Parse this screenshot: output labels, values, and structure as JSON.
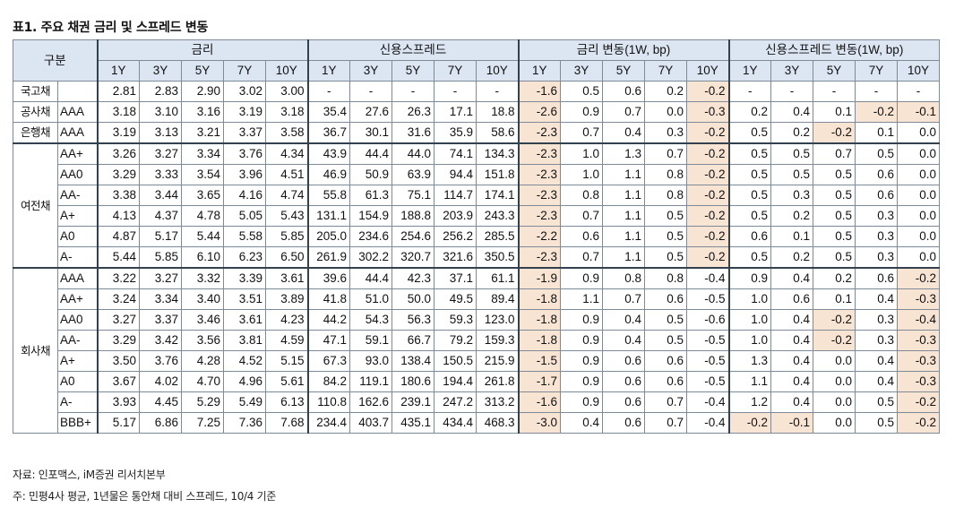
{
  "title": "표1. 주요 채권 금리 및 스프레드 변동",
  "header": {
    "category": "구분",
    "groups": [
      "금리",
      "신용스프레드",
      "금리 변동(1W, bp)",
      "신용스프레드 변동(1W, bp)"
    ],
    "tenors": [
      "1Y",
      "3Y",
      "5Y",
      "7Y",
      "10Y"
    ]
  },
  "sections": {
    "govt": "국고채",
    "public": "공사채",
    "bank": "은행채",
    "card": "여전채",
    "corp": "회사채"
  },
  "rows": [
    {
      "grade": "",
      "rates": [
        "2.81",
        "2.83",
        "2.90",
        "3.02",
        "3.00"
      ],
      "spreads": [
        "-",
        "-",
        "-",
        "-",
        "-"
      ],
      "rate_chg": [
        "-1.6",
        "0.5",
        "0.6",
        "0.2",
        "-0.2"
      ],
      "spread_chg": [
        "-",
        "-",
        "-",
        "-",
        "-"
      ]
    },
    {
      "grade": "AAA",
      "rates": [
        "3.18",
        "3.10",
        "3.16",
        "3.19",
        "3.18"
      ],
      "spreads": [
        "35.4",
        "27.6",
        "26.3",
        "17.1",
        "18.8"
      ],
      "rate_chg": [
        "-2.6",
        "0.9",
        "0.7",
        "0.0",
        "-0.3"
      ],
      "spread_chg": [
        "0.2",
        "0.4",
        "0.1",
        "-0.2",
        "-0.1"
      ]
    },
    {
      "grade": "AAA",
      "rates": [
        "3.19",
        "3.13",
        "3.21",
        "3.37",
        "3.58"
      ],
      "spreads": [
        "36.7",
        "30.1",
        "31.6",
        "35.9",
        "58.6"
      ],
      "rate_chg": [
        "-2.3",
        "0.7",
        "0.4",
        "0.3",
        "-0.2"
      ],
      "spread_chg": [
        "0.5",
        "0.2",
        "-0.2",
        "0.1",
        "0.0"
      ]
    },
    {
      "grade": "AA+",
      "rates": [
        "3.26",
        "3.27",
        "3.34",
        "3.76",
        "4.34"
      ],
      "spreads": [
        "43.9",
        "44.4",
        "44.0",
        "74.1",
        "134.3"
      ],
      "rate_chg": [
        "-2.3",
        "1.0",
        "1.3",
        "0.7",
        "-0.2"
      ],
      "spread_chg": [
        "0.5",
        "0.5",
        "0.7",
        "0.5",
        "0.0"
      ]
    },
    {
      "grade": "AA0",
      "rates": [
        "3.29",
        "3.33",
        "3.54",
        "3.96",
        "4.51"
      ],
      "spreads": [
        "46.9",
        "50.9",
        "63.9",
        "94.4",
        "151.8"
      ],
      "rate_chg": [
        "-2.3",
        "1.0",
        "1.1",
        "0.8",
        "-0.2"
      ],
      "spread_chg": [
        "0.5",
        "0.5",
        "0.5",
        "0.6",
        "0.0"
      ]
    },
    {
      "grade": "AA-",
      "rates": [
        "3.38",
        "3.44",
        "3.65",
        "4.16",
        "4.74"
      ],
      "spreads": [
        "55.8",
        "61.3",
        "75.1",
        "114.7",
        "174.1"
      ],
      "rate_chg": [
        "-2.3",
        "0.8",
        "1.1",
        "0.8",
        "-0.2"
      ],
      "spread_chg": [
        "0.5",
        "0.3",
        "0.5",
        "0.6",
        "0.0"
      ]
    },
    {
      "grade": "A+",
      "rates": [
        "4.13",
        "4.37",
        "4.78",
        "5.05",
        "5.43"
      ],
      "spreads": [
        "131.1",
        "154.9",
        "188.8",
        "203.9",
        "243.3"
      ],
      "rate_chg": [
        "-2.3",
        "0.7",
        "1.1",
        "0.5",
        "-0.2"
      ],
      "spread_chg": [
        "0.5",
        "0.2",
        "0.5",
        "0.3",
        "0.0"
      ]
    },
    {
      "grade": "A0",
      "rates": [
        "4.87",
        "5.17",
        "5.44",
        "5.58",
        "5.85"
      ],
      "spreads": [
        "205.0",
        "234.6",
        "254.6",
        "256.2",
        "285.5"
      ],
      "rate_chg": [
        "-2.2",
        "0.6",
        "1.1",
        "0.5",
        "-0.2"
      ],
      "spread_chg": [
        "0.6",
        "0.1",
        "0.5",
        "0.3",
        "0.0"
      ]
    },
    {
      "grade": "A-",
      "rates": [
        "5.44",
        "5.85",
        "6.10",
        "6.23",
        "6.50"
      ],
      "spreads": [
        "261.9",
        "302.2",
        "320.7",
        "321.6",
        "350.5"
      ],
      "rate_chg": [
        "-2.3",
        "0.7",
        "1.1",
        "0.5",
        "-0.2"
      ],
      "spread_chg": [
        "0.5",
        "0.2",
        "0.5",
        "0.3",
        "0.0"
      ]
    },
    {
      "grade": "AAA",
      "rates": [
        "3.22",
        "3.27",
        "3.32",
        "3.39",
        "3.61"
      ],
      "spreads": [
        "39.6",
        "44.4",
        "42.3",
        "37.1",
        "61.1"
      ],
      "rate_chg": [
        "-1.9",
        "0.9",
        "0.8",
        "0.8",
        "-0.4"
      ],
      "spread_chg": [
        "0.9",
        "0.4",
        "0.2",
        "0.6",
        "-0.2"
      ]
    },
    {
      "grade": "AA+",
      "rates": [
        "3.24",
        "3.34",
        "3.40",
        "3.51",
        "3.89"
      ],
      "spreads": [
        "41.8",
        "51.0",
        "50.0",
        "49.5",
        "89.4"
      ],
      "rate_chg": [
        "-1.8",
        "1.1",
        "0.7",
        "0.6",
        "-0.5"
      ],
      "spread_chg": [
        "1.0",
        "0.6",
        "0.1",
        "0.4",
        "-0.3"
      ]
    },
    {
      "grade": "AA0",
      "rates": [
        "3.27",
        "3.37",
        "3.46",
        "3.61",
        "4.23"
      ],
      "spreads": [
        "44.2",
        "54.3",
        "56.3",
        "59.3",
        "123.0"
      ],
      "rate_chg": [
        "-1.8",
        "0.9",
        "0.4",
        "0.5",
        "-0.6"
      ],
      "spread_chg": [
        "1.0",
        "0.4",
        "-0.2",
        "0.3",
        "-0.4"
      ]
    },
    {
      "grade": "AA-",
      "rates": [
        "3.29",
        "3.42",
        "3.56",
        "3.81",
        "4.59"
      ],
      "spreads": [
        "47.1",
        "59.1",
        "66.7",
        "79.2",
        "159.3"
      ],
      "rate_chg": [
        "-1.8",
        "0.9",
        "0.4",
        "0.5",
        "-0.5"
      ],
      "spread_chg": [
        "1.0",
        "0.4",
        "-0.2",
        "0.3",
        "-0.3"
      ]
    },
    {
      "grade": "A+",
      "rates": [
        "3.50",
        "3.76",
        "4.28",
        "4.52",
        "5.15"
      ],
      "spreads": [
        "67.3",
        "93.0",
        "138.4",
        "150.5",
        "215.9"
      ],
      "rate_chg": [
        "-1.5",
        "0.9",
        "0.6",
        "0.6",
        "-0.5"
      ],
      "spread_chg": [
        "1.3",
        "0.4",
        "0.0",
        "0.4",
        "-0.3"
      ]
    },
    {
      "grade": "A0",
      "rates": [
        "3.67",
        "4.02",
        "4.70",
        "4.96",
        "5.61"
      ],
      "spreads": [
        "84.2",
        "119.1",
        "180.6",
        "194.4",
        "261.8"
      ],
      "rate_chg": [
        "-1.7",
        "0.9",
        "0.6",
        "0.6",
        "-0.5"
      ],
      "spread_chg": [
        "1.1",
        "0.4",
        "0.0",
        "0.4",
        "-0.3"
      ]
    },
    {
      "grade": "A-",
      "rates": [
        "3.93",
        "4.45",
        "5.29",
        "5.49",
        "6.13"
      ],
      "spreads": [
        "110.8",
        "162.6",
        "239.1",
        "247.2",
        "313.2"
      ],
      "rate_chg": [
        "-1.6",
        "0.9",
        "0.6",
        "0.7",
        "-0.4"
      ],
      "spread_chg": [
        "1.2",
        "0.4",
        "0.0",
        "0.5",
        "-0.2"
      ]
    },
    {
      "grade": "BBB+",
      "rates": [
        "5.17",
        "6.86",
        "7.25",
        "7.36",
        "7.68"
      ],
      "spreads": [
        "234.4",
        "403.7",
        "435.1",
        "434.4",
        "468.3"
      ],
      "rate_chg": [
        "-3.0",
        "0.4",
        "0.6",
        "0.7",
        "-0.4"
      ],
      "spread_chg": [
        "-0.2",
        "-0.1",
        "0.0",
        "0.5",
        "-0.2"
      ]
    }
  ],
  "footnotes": {
    "source": "자료: 인포맥스, iM증권 리서치본부",
    "note": "주: 민평4사 평균, 1년물은 통안채 대비 스프레드, 10/4 기준"
  },
  "colors": {
    "header_bg": "#dce6f2",
    "highlight_bg": "#f8e4d3",
    "grid": "#7f8a96"
  }
}
